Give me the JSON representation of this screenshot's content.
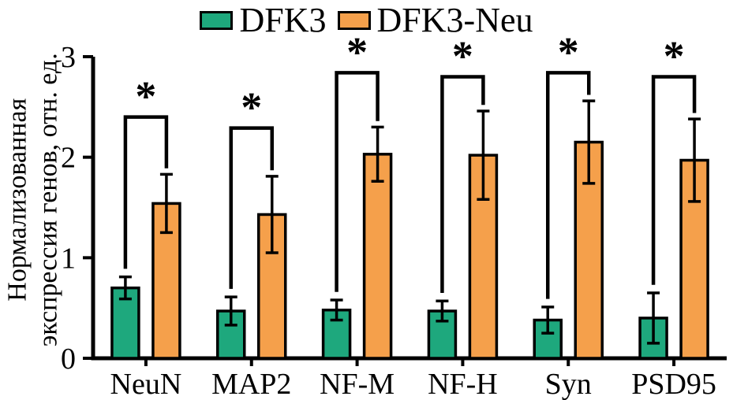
{
  "chart_data": {
    "type": "bar",
    "categories": [
      "NeuN",
      "MAP2",
      "NF-M",
      "NF-H",
      "Syn",
      "PSD95"
    ],
    "series": [
      {
        "name": "DFK3",
        "color": "#1EA87D",
        "values": [
          0.7,
          0.47,
          0.48,
          0.47,
          0.38,
          0.4
        ],
        "errors": [
          0.11,
          0.14,
          0.1,
          0.1,
          0.13,
          0.25
        ]
      },
      {
        "name": "DFK3-Neu",
        "color": "#F5A04B",
        "values": [
          1.54,
          1.43,
          2.03,
          2.02,
          2.15,
          1.97
        ],
        "errors": [
          0.29,
          0.38,
          0.27,
          0.44,
          0.41,
          0.41
        ]
      }
    ],
    "significance": {
      "symbol": "*",
      "bracket_tops": [
        2.4,
        2.29,
        2.84,
        2.8,
        2.84,
        2.8
      ]
    },
    "ylabel_line1": "Нормализованная",
    "ylabel_line2": "экспрессия генов, отн. ед.",
    "xlabel": "",
    "ylim": [
      0,
      3
    ],
    "yticks": [
      0,
      1,
      2,
      3
    ],
    "legend_position": "top",
    "grid": false,
    "axis_color": "#000000"
  }
}
